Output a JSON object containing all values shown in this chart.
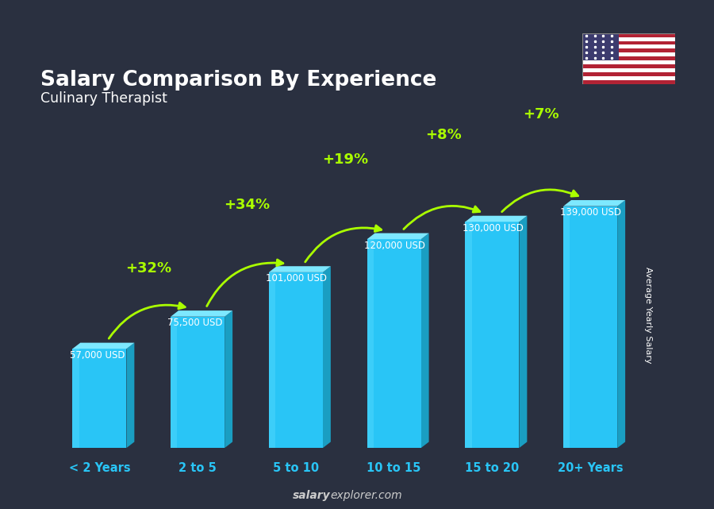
{
  "title": "Salary Comparison By Experience",
  "subtitle": "Culinary Therapist",
  "categories": [
    "< 2 Years",
    "2 to 5",
    "5 to 10",
    "10 to 15",
    "15 to 20",
    "20+ Years"
  ],
  "values": [
    57000,
    75500,
    101000,
    120000,
    130000,
    139000
  ],
  "value_labels": [
    "57,000 USD",
    "75,500 USD",
    "101,000 USD",
    "120,000 USD",
    "130,000 USD",
    "139,000 USD"
  ],
  "pct_labels": [
    "+32%",
    "+34%",
    "+19%",
    "+8%",
    "+7%"
  ],
  "bar_color_face": "#29c5f6",
  "bar_color_dark": "#1a9ec2",
  "bar_color_top": "#7de8ff",
  "bg_color": "#2a3040",
  "title_color": "#ffffff",
  "subtitle_color": "#ffffff",
  "value_label_color": "#ffffff",
  "pct_color": "#aaff00",
  "xlabel_color": "#29c5f6",
  "footer_bold": "salary",
  "footer_normal": "explorer.com",
  "footer_color": "#cccccc",
  "ylabel_text": "Average Yearly Salary",
  "ylabel_color": "#ffffff",
  "flag_stripes": [
    "#B22234",
    "#ffffff",
    "#B22234",
    "#ffffff",
    "#B22234",
    "#ffffff",
    "#B22234",
    "#ffffff",
    "#B22234",
    "#ffffff",
    "#B22234",
    "#ffffff",
    "#B22234"
  ],
  "flag_canton": "#3C3B6E"
}
